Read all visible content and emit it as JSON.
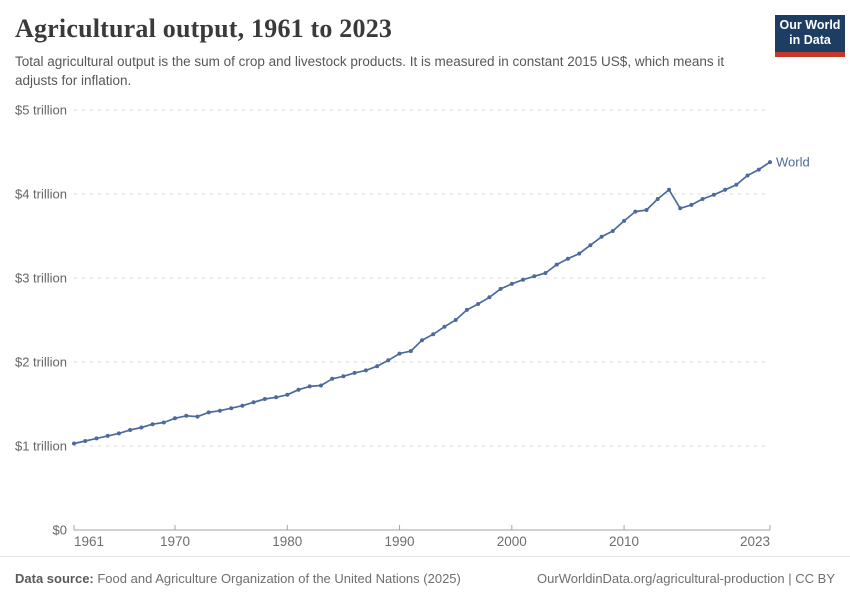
{
  "header": {
    "title": "Agricultural output, 1961 to 2023",
    "subtitle": "Total agricultural output is the sum of crop and livestock products. It is measured in constant 2015 US$, which means it adjusts for inflation.",
    "logo": {
      "line1": "Our World",
      "line2": "in Data"
    }
  },
  "colors": {
    "series": "#4c6a9c",
    "grid": "#d9d9d9",
    "axis": "#a3a3a3",
    "tick_label": "#6e6e6e",
    "logo_bg": "#1d3d63",
    "logo_stripe": "#c5392b"
  },
  "chart_data": {
    "type": "line",
    "title": "Agricultural output, 1961 to 2023",
    "xlabel": "",
    "ylabel": "",
    "xlim": [
      1961,
      2023
    ],
    "ylim": [
      0,
      5
    ],
    "grid": "horizontal-dashed",
    "legend": "end-of-line-label",
    "x_ticks": [
      1961,
      1970,
      1980,
      1990,
      2000,
      2010,
      2023
    ],
    "y_ticks": [
      {
        "value": 0,
        "label": "$0"
      },
      {
        "value": 1,
        "label": "$1 trillion"
      },
      {
        "value": 2,
        "label": "$2 trillion"
      },
      {
        "value": 3,
        "label": "$3 trillion"
      },
      {
        "value": 4,
        "label": "$4 trillion"
      },
      {
        "value": 5,
        "label": "$5 trillion"
      }
    ],
    "unit": "constant 2015 US$ (trillions)",
    "series": [
      {
        "name": "World",
        "color": "#4c6a9c",
        "x": [
          1961,
          1962,
          1963,
          1964,
          1965,
          1966,
          1967,
          1968,
          1969,
          1970,
          1971,
          1972,
          1973,
          1974,
          1975,
          1976,
          1977,
          1978,
          1979,
          1980,
          1981,
          1982,
          1983,
          1984,
          1985,
          1986,
          1987,
          1988,
          1989,
          1990,
          1991,
          1992,
          1993,
          1994,
          1995,
          1996,
          1997,
          1998,
          1999,
          2000,
          2001,
          2002,
          2003,
          2004,
          2005,
          2006,
          2007,
          2008,
          2009,
          2010,
          2011,
          2012,
          2013,
          2014,
          2015,
          2016,
          2017,
          2018,
          2019,
          2020,
          2021,
          2022,
          2023
        ],
        "values": [
          1.03,
          1.06,
          1.09,
          1.12,
          1.15,
          1.19,
          1.22,
          1.26,
          1.28,
          1.33,
          1.36,
          1.35,
          1.4,
          1.42,
          1.45,
          1.48,
          1.52,
          1.56,
          1.58,
          1.61,
          1.67,
          1.71,
          1.72,
          1.8,
          1.83,
          1.87,
          1.9,
          1.95,
          2.02,
          2.1,
          2.13,
          2.26,
          2.33,
          2.42,
          2.5,
          2.62,
          2.69,
          2.77,
          2.87,
          2.93,
          2.98,
          3.02,
          3.06,
          3.16,
          3.23,
          3.29,
          3.39,
          3.49,
          3.56,
          3.68,
          3.79,
          3.81,
          3.94,
          4.05,
          3.83,
          3.87,
          3.94,
          3.99,
          4.05,
          4.11,
          4.22,
          4.29,
          4.38
        ]
      }
    ]
  },
  "footer": {
    "datasource_label": "Data source:",
    "datasource_text": " Food and Agriculture Organization of the United Nations (2025)",
    "link_text": "OurWorldinData.org/agricultural-production",
    "separator": " | ",
    "license": "CC BY"
  }
}
